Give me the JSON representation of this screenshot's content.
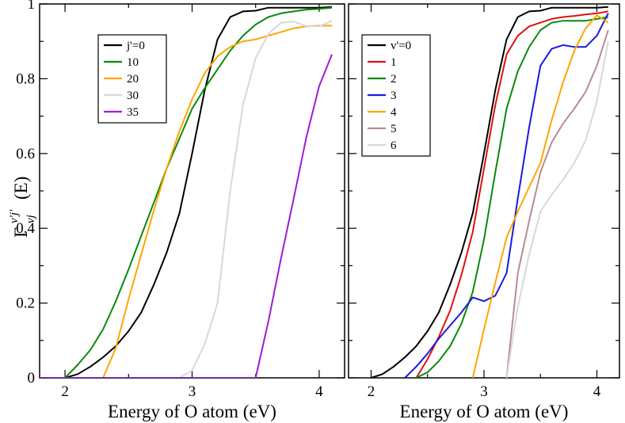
{
  "chart_data": [
    {
      "type": "line",
      "xlabel": "Energy of O atom (eV)",
      "ylabel": "Γ",
      "ylabel_sup": "v'j'",
      "ylabel_sub": "vj",
      "ylabel_suffix": "(E)",
      "xlim": [
        1.8,
        4.2
      ],
      "ylim": [
        0,
        1
      ],
      "xticks": [
        2,
        3,
        4
      ],
      "yticks": [
        0,
        0.2,
        0.4,
        0.6,
        0.8,
        1
      ],
      "ytick_labels": [
        "0",
        "0.2",
        "0.4",
        "0.6",
        "0.8",
        "1"
      ],
      "legend_position": "upper-left",
      "series": [
        {
          "name": "j'=0",
          "color": "#000000",
          "x": [
            1.8,
            2.0,
            2.1,
            2.2,
            2.3,
            2.4,
            2.5,
            2.6,
            2.7,
            2.8,
            2.9,
            3.0,
            3.1,
            3.2,
            3.3,
            3.4,
            3.5,
            3.6,
            3.7,
            3.8,
            3.9,
            4.0,
            4.1
          ],
          "y": [
            0,
            0,
            0.01,
            0.03,
            0.055,
            0.085,
            0.125,
            0.175,
            0.25,
            0.335,
            0.44,
            0.6,
            0.77,
            0.905,
            0.965,
            0.98,
            0.982,
            0.99,
            0.99,
            0.99,
            0.99,
            0.99,
            0.992
          ]
        },
        {
          "name": "10",
          "color": "#0a8a0a",
          "x": [
            2.0,
            2.1,
            2.2,
            2.3,
            2.4,
            2.5,
            2.6,
            2.7,
            2.8,
            2.9,
            3.0,
            3.1,
            3.2,
            3.3,
            3.4,
            3.5,
            3.6,
            3.7,
            3.8,
            3.9,
            4.0,
            4.1
          ],
          "y": [
            0,
            0.035,
            0.075,
            0.13,
            0.205,
            0.29,
            0.38,
            0.47,
            0.56,
            0.64,
            0.72,
            0.775,
            0.825,
            0.875,
            0.915,
            0.945,
            0.965,
            0.975,
            0.98,
            0.985,
            0.987,
            0.99
          ]
        },
        {
          "name": "20",
          "color": "#ffa500",
          "x": [
            2.3,
            2.4,
            2.5,
            2.6,
            2.7,
            2.8,
            2.9,
            3.0,
            3.1,
            3.2,
            3.3,
            3.4,
            3.5,
            3.6,
            3.7,
            3.8,
            3.9,
            4.0,
            4.1
          ],
          "y": [
            0,
            0.08,
            0.21,
            0.33,
            0.45,
            0.56,
            0.66,
            0.745,
            0.815,
            0.86,
            0.885,
            0.9,
            0.905,
            0.915,
            0.925,
            0.935,
            0.94,
            0.942,
            0.942
          ]
        },
        {
          "name": "30",
          "color": "#d8d8d8",
          "x": [
            2.9,
            3.0,
            3.1,
            3.2,
            3.3,
            3.4,
            3.5,
            3.6,
            3.7,
            3.8,
            3.9,
            4.0,
            4.1
          ],
          "y": [
            0,
            0.02,
            0.09,
            0.2,
            0.5,
            0.73,
            0.855,
            0.92,
            0.95,
            0.953,
            0.94,
            0.94,
            0.955
          ]
        },
        {
          "name": "35",
          "color": "#9b1cd6",
          "x": [
            1.8,
            3.5,
            3.6,
            3.7,
            3.8,
            3.9,
            4.0,
            4.1
          ],
          "y": [
            0,
            0,
            0.15,
            0.32,
            0.48,
            0.645,
            0.78,
            0.865
          ]
        }
      ]
    },
    {
      "type": "line",
      "xlabel": "Energy of O atom (eV)",
      "xlim": [
        1.8,
        4.2
      ],
      "ylim": [
        0,
        1
      ],
      "xticks": [
        2,
        3,
        4
      ],
      "legend_position": "upper-left",
      "series": [
        {
          "name": "v'=0",
          "color": "#000000",
          "x": [
            2.0,
            2.1,
            2.2,
            2.3,
            2.4,
            2.5,
            2.6,
            2.7,
            2.8,
            2.9,
            3.0,
            3.1,
            3.2,
            3.3,
            3.4,
            3.5,
            3.6,
            3.7,
            3.8,
            3.9,
            4.0,
            4.1
          ],
          "y": [
            0,
            0.01,
            0.03,
            0.055,
            0.085,
            0.125,
            0.175,
            0.25,
            0.335,
            0.44,
            0.6,
            0.77,
            0.905,
            0.965,
            0.98,
            0.982,
            0.99,
            0.99,
            0.99,
            0.99,
            0.99,
            0.992
          ]
        },
        {
          "name": "1",
          "color": "#e01010",
          "x": [
            2.4,
            2.5,
            2.6,
            2.7,
            2.8,
            2.9,
            3.0,
            3.1,
            3.2,
            3.3,
            3.4,
            3.5,
            3.6,
            3.7,
            3.8,
            3.9,
            4.0,
            4.1
          ],
          "y": [
            0,
            0.05,
            0.11,
            0.18,
            0.275,
            0.39,
            0.56,
            0.73,
            0.865,
            0.915,
            0.94,
            0.95,
            0.96,
            0.965,
            0.968,
            0.972,
            0.975,
            0.98
          ]
        },
        {
          "name": "2",
          "color": "#0a8a0a",
          "x": [
            2.4,
            2.5,
            2.6,
            2.7,
            2.8,
            2.9,
            3.0,
            3.1,
            3.2,
            3.3,
            3.4,
            3.5,
            3.6,
            3.7,
            3.8,
            3.9,
            4.0,
            4.1
          ],
          "y": [
            0,
            0.015,
            0.045,
            0.085,
            0.145,
            0.23,
            0.37,
            0.55,
            0.72,
            0.82,
            0.885,
            0.93,
            0.95,
            0.955,
            0.955,
            0.955,
            0.96,
            0.965
          ]
        },
        {
          "name": "3",
          "color": "#1a1ae0",
          "x": [
            2.3,
            2.4,
            2.5,
            2.6,
            2.7,
            2.8,
            2.9,
            3.0,
            3.1,
            3.2,
            3.3,
            3.4,
            3.5,
            3.6,
            3.7,
            3.8,
            3.9,
            4.0,
            4.1
          ],
          "y": [
            0,
            0.03,
            0.065,
            0.105,
            0.14,
            0.175,
            0.215,
            0.205,
            0.22,
            0.28,
            0.48,
            0.67,
            0.835,
            0.88,
            0.89,
            0.885,
            0.885,
            0.915,
            0.975
          ]
        },
        {
          "name": "4",
          "color": "#ffa500",
          "x": [
            2.9,
            3.0,
            3.1,
            3.2,
            3.3,
            3.4,
            3.5,
            3.6,
            3.7,
            3.8,
            3.9,
            4.0,
            4.1
          ],
          "y": [
            0,
            0.13,
            0.255,
            0.375,
            0.445,
            0.51,
            0.575,
            0.69,
            0.79,
            0.875,
            0.935,
            0.97,
            0.95
          ]
        },
        {
          "name": "5",
          "color": "#b88c8c",
          "x": [
            3.2,
            3.3,
            3.4,
            3.5,
            3.6,
            3.7,
            3.8,
            3.9,
            4.0,
            4.1
          ],
          "y": [
            0,
            0.28,
            0.42,
            0.55,
            0.63,
            0.68,
            0.72,
            0.765,
            0.835,
            0.93
          ]
        },
        {
          "name": "6",
          "color": "#d8d8d8",
          "x": [
            3.2,
            3.3,
            3.4,
            3.5,
            3.6,
            3.7,
            3.8,
            3.9,
            4.0,
            4.1
          ],
          "y": [
            0,
            0.19,
            0.33,
            0.445,
            0.49,
            0.53,
            0.575,
            0.635,
            0.74,
            0.9
          ]
        }
      ]
    }
  ]
}
